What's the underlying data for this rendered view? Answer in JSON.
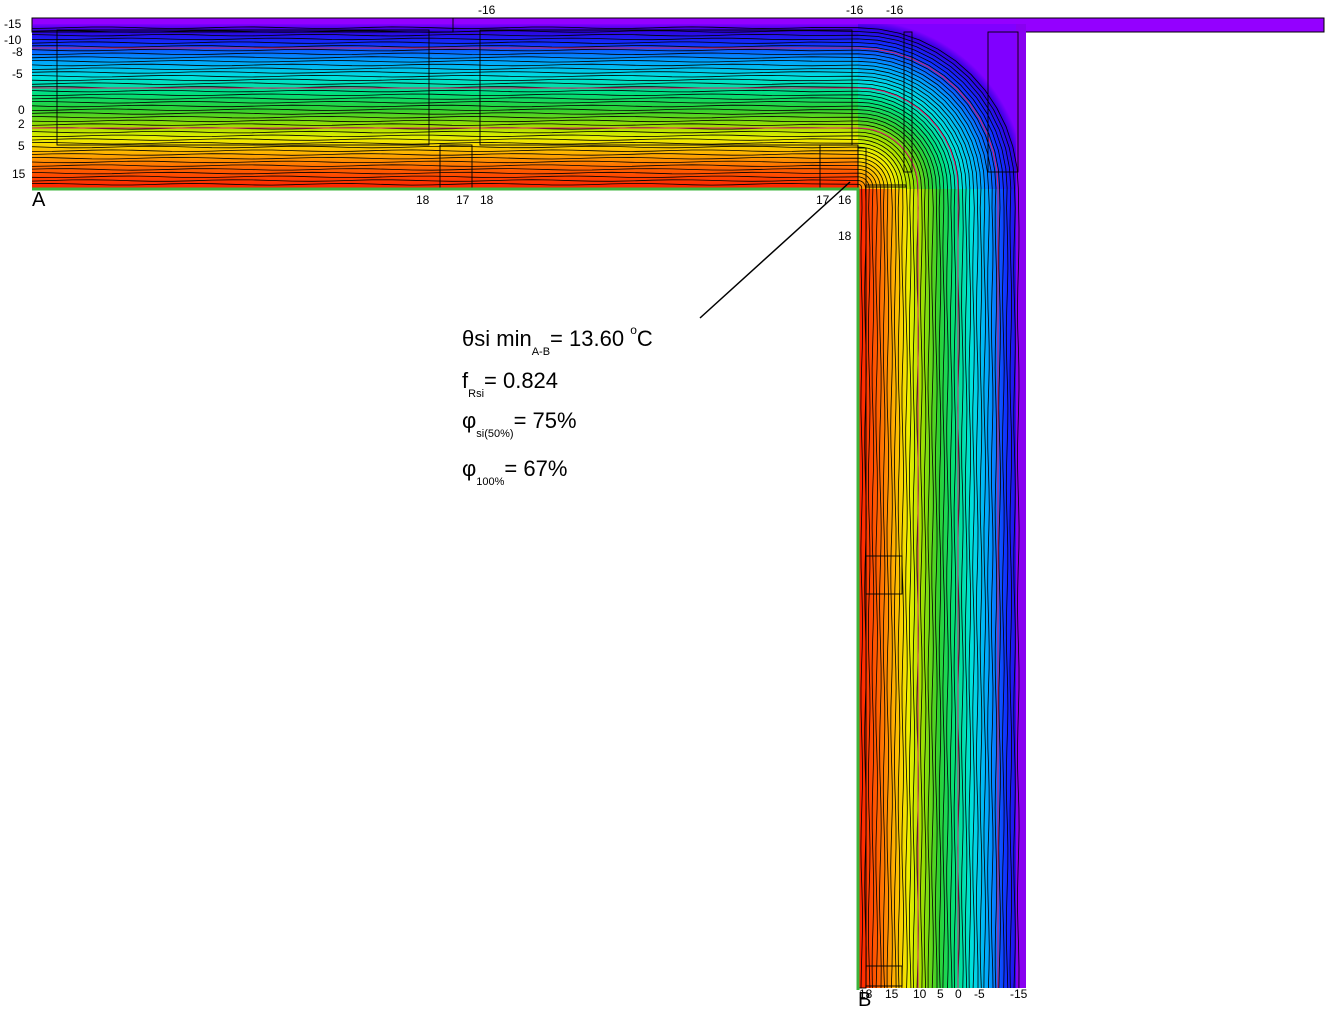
{
  "diagram": {
    "colors": {
      "cold": "#9400ff",
      "warm": "#ff0000",
      "frame": "#3cb43c",
      "isotherm": "#000000",
      "red_line": "#e0206a"
    },
    "point_a": "A",
    "point_b": "B",
    "left_scale": [
      "-15",
      "-10",
      "-8",
      "-5",
      "0",
      "2",
      "5",
      "15"
    ],
    "top_labels": [
      "-16",
      "-16",
      "-16"
    ],
    "horizontal_surface_labels": [
      "18",
      "17",
      "18",
      "17",
      "16"
    ],
    "corner_label": "18",
    "bottom_scale": [
      "18",
      "15",
      "10",
      "5",
      "0",
      "-5",
      "-15"
    ],
    "results": {
      "theta_symbol": "θ",
      "theta_name": "si min",
      "theta_sub": "A-B",
      "theta_eq": "= 13.60",
      "theta_sup": "o",
      "theta_unit": "C",
      "f_symbol": "f",
      "f_sub": "Rsi",
      "f_eq": "= 0.824",
      "phi_symbol": "φ",
      "phi1_sub": "si(50%)",
      "phi1_eq": "= 75%",
      "phi2_sub": "100%",
      "phi2_eq": "= 67%"
    }
  }
}
